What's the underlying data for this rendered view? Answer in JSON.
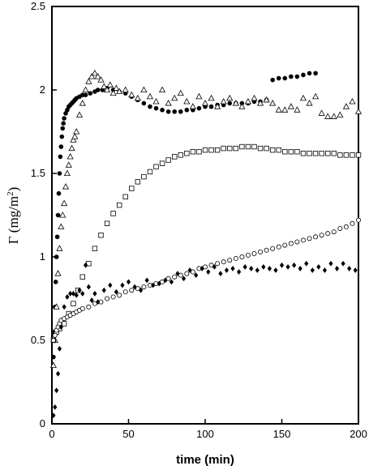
{
  "chart_data": {
    "type": "scatter",
    "title": "",
    "xlabel": "time (min)",
    "ylabel": "Γ (mg/m²)",
    "ylabel_main": "Γ (mg/m",
    "ylabel_sup": "2",
    "ylabel_close": ")",
    "xlim": [
      0,
      200
    ],
    "ylim": [
      0,
      2.5
    ],
    "xticks": [
      0,
      50,
      100,
      150,
      200
    ],
    "yticks": [
      0,
      0.5,
      1,
      1.5,
      2,
      2.5
    ],
    "xtick_labels": [
      "0",
      "50",
      "100",
      "150",
      "200"
    ],
    "ytick_labels": [
      "0",
      "0.5",
      "1",
      "1.5",
      "2",
      "2.5"
    ],
    "grid": false,
    "legend": "none",
    "series": [
      {
        "marker": "filled-circle",
        "x": [
          1,
          1.5,
          2,
          2.5,
          3,
          3.5,
          4,
          4.5,
          5,
          5.5,
          6,
          6.5,
          7,
          7.5,
          8,
          9,
          10,
          11,
          12,
          13,
          14,
          15,
          16,
          18,
          20,
          22,
          25,
          28,
          30,
          33,
          36,
          40,
          44,
          48,
          52,
          56,
          60,
          64,
          68,
          72,
          76,
          80,
          84,
          88,
          92,
          96,
          100,
          104,
          108,
          112,
          116,
          120,
          124,
          128,
          132,
          136,
          140,
          144,
          148,
          152,
          156,
          160,
          164,
          168,
          172
        ],
        "y": [
          0.4,
          0.55,
          0.7,
          0.85,
          1.0,
          1.12,
          1.25,
          1.38,
          1.5,
          1.6,
          1.66,
          1.72,
          1.77,
          1.8,
          1.83,
          1.86,
          1.88,
          1.9,
          1.91,
          1.92,
          1.93,
          1.94,
          1.95,
          1.96,
          1.97,
          1.97,
          1.98,
          1.99,
          2.0,
          2.0,
          2.01,
          2.0,
          1.99,
          1.98,
          1.96,
          1.94,
          1.92,
          1.9,
          1.89,
          1.88,
          1.87,
          1.87,
          1.87,
          1.88,
          1.88,
          1.89,
          1.9,
          1.9,
          1.91,
          1.91,
          1.92,
          1.92,
          1.92,
          1.92,
          1.93,
          1.93,
          1.94,
          2.06,
          2.07,
          2.07,
          2.08,
          2.08,
          2.09,
          2.1,
          2.1
        ]
      },
      {
        "marker": "open-triangle",
        "x": [
          1,
          2,
          3,
          4,
          5,
          6,
          7,
          8,
          9,
          10,
          11,
          12,
          13,
          14,
          15,
          16,
          18,
          20,
          22,
          24,
          26,
          28,
          30,
          32,
          34,
          36,
          38,
          40,
          42,
          44,
          48,
          52,
          56,
          60,
          64,
          68,
          72,
          76,
          80,
          84,
          88,
          92,
          96,
          100,
          104,
          108,
          112,
          116,
          120,
          124,
          128,
          132,
          136,
          140,
          144,
          148,
          152,
          156,
          160,
          164,
          168,
          172,
          176,
          180,
          184,
          188,
          192,
          196,
          200
        ],
        "y": [
          0.35,
          0.5,
          0.7,
          0.9,
          1.05,
          1.18,
          1.25,
          1.32,
          1.42,
          1.5,
          1.55,
          1.6,
          1.65,
          1.7,
          1.72,
          1.75,
          1.85,
          1.92,
          2.0,
          2.05,
          2.08,
          2.1,
          2.08,
          2.06,
          2.02,
          2.0,
          2.03,
          1.98,
          2.01,
          1.99,
          2.0,
          1.97,
          1.95,
          2.0,
          1.96,
          1.93,
          2.0,
          1.92,
          1.95,
          1.98,
          1.93,
          1.9,
          1.96,
          1.92,
          1.95,
          1.9,
          1.93,
          1.95,
          1.92,
          1.9,
          1.93,
          1.95,
          1.92,
          1.94,
          1.92,
          1.88,
          1.88,
          1.9,
          1.88,
          1.95,
          1.92,
          1.96,
          1.86,
          1.84,
          1.84,
          1.85,
          1.9,
          1.93,
          1.87
        ]
      },
      {
        "marker": "open-square",
        "x": [
          1,
          3,
          5,
          8,
          11,
          14,
          17,
          20,
          24,
          28,
          32,
          36,
          40,
          44,
          48,
          52,
          56,
          60,
          64,
          68,
          72,
          76,
          80,
          84,
          88,
          92,
          96,
          100,
          104,
          108,
          112,
          116,
          120,
          124,
          128,
          132,
          136,
          140,
          144,
          148,
          152,
          156,
          160,
          164,
          168,
          172,
          176,
          180,
          184,
          188,
          192,
          196,
          200
        ],
        "y": [
          0.5,
          0.55,
          0.57,
          0.6,
          0.66,
          0.72,
          0.8,
          0.88,
          0.96,
          1.05,
          1.13,
          1.2,
          1.26,
          1.31,
          1.36,
          1.41,
          1.45,
          1.48,
          1.51,
          1.54,
          1.56,
          1.58,
          1.6,
          1.61,
          1.62,
          1.63,
          1.63,
          1.64,
          1.64,
          1.64,
          1.65,
          1.65,
          1.65,
          1.66,
          1.66,
          1.66,
          1.65,
          1.65,
          1.64,
          1.64,
          1.63,
          1.63,
          1.63,
          1.62,
          1.62,
          1.62,
          1.62,
          1.62,
          1.62,
          1.61,
          1.61,
          1.61,
          1.61
        ]
      },
      {
        "marker": "open-circle",
        "x": [
          1,
          2,
          3,
          4,
          5,
          6,
          8,
          10,
          12,
          14,
          16,
          18,
          20,
          24,
          28,
          32,
          36,
          40,
          44,
          48,
          52,
          56,
          60,
          64,
          68,
          72,
          76,
          80,
          84,
          88,
          92,
          96,
          100,
          104,
          108,
          112,
          116,
          120,
          124,
          128,
          132,
          136,
          140,
          144,
          148,
          152,
          156,
          160,
          164,
          168,
          172,
          176,
          180,
          184,
          188,
          192,
          196,
          200
        ],
        "y": [
          0.5,
          0.53,
          0.56,
          0.58,
          0.6,
          0.62,
          0.63,
          0.64,
          0.65,
          0.66,
          0.67,
          0.68,
          0.69,
          0.7,
          0.72,
          0.73,
          0.75,
          0.76,
          0.77,
          0.79,
          0.8,
          0.81,
          0.82,
          0.83,
          0.84,
          0.85,
          0.87,
          0.88,
          0.89,
          0.9,
          0.91,
          0.93,
          0.94,
          0.95,
          0.96,
          0.97,
          0.98,
          0.99,
          1.0,
          1.01,
          1.02,
          1.03,
          1.04,
          1.05,
          1.06,
          1.07,
          1.08,
          1.09,
          1.1,
          1.11,
          1.12,
          1.13,
          1.14,
          1.15,
          1.17,
          1.18,
          1.2,
          1.22
        ]
      },
      {
        "marker": "filled-diamond",
        "x": [
          1,
          2,
          3,
          4,
          5,
          6,
          8,
          10,
          12,
          14,
          16,
          18,
          20,
          22,
          24,
          26,
          28,
          30,
          34,
          38,
          42,
          46,
          50,
          54,
          58,
          62,
          66,
          70,
          74,
          78,
          82,
          86,
          90,
          94,
          98,
          102,
          106,
          110,
          114,
          118,
          122,
          126,
          130,
          134,
          138,
          142,
          146,
          150,
          154,
          158,
          162,
          166,
          170,
          174,
          178,
          182,
          186,
          190,
          194,
          198
        ],
        "y": [
          0.05,
          0.1,
          0.2,
          0.3,
          0.45,
          0.58,
          0.7,
          0.76,
          0.78,
          0.78,
          0.77,
          0.8,
          0.78,
          0.95,
          0.82,
          0.74,
          0.78,
          0.73,
          0.8,
          0.83,
          0.79,
          0.83,
          0.85,
          0.82,
          0.8,
          0.86,
          0.83,
          0.84,
          0.86,
          0.85,
          0.9,
          0.87,
          0.92,
          0.89,
          0.93,
          0.91,
          0.94,
          0.9,
          0.92,
          0.93,
          0.91,
          0.94,
          0.93,
          0.92,
          0.94,
          0.93,
          0.92,
          0.95,
          0.94,
          0.95,
          0.93,
          0.96,
          0.92,
          0.94,
          0.92,
          0.96,
          0.93,
          0.96,
          0.93,
          0.92
        ]
      }
    ]
  }
}
